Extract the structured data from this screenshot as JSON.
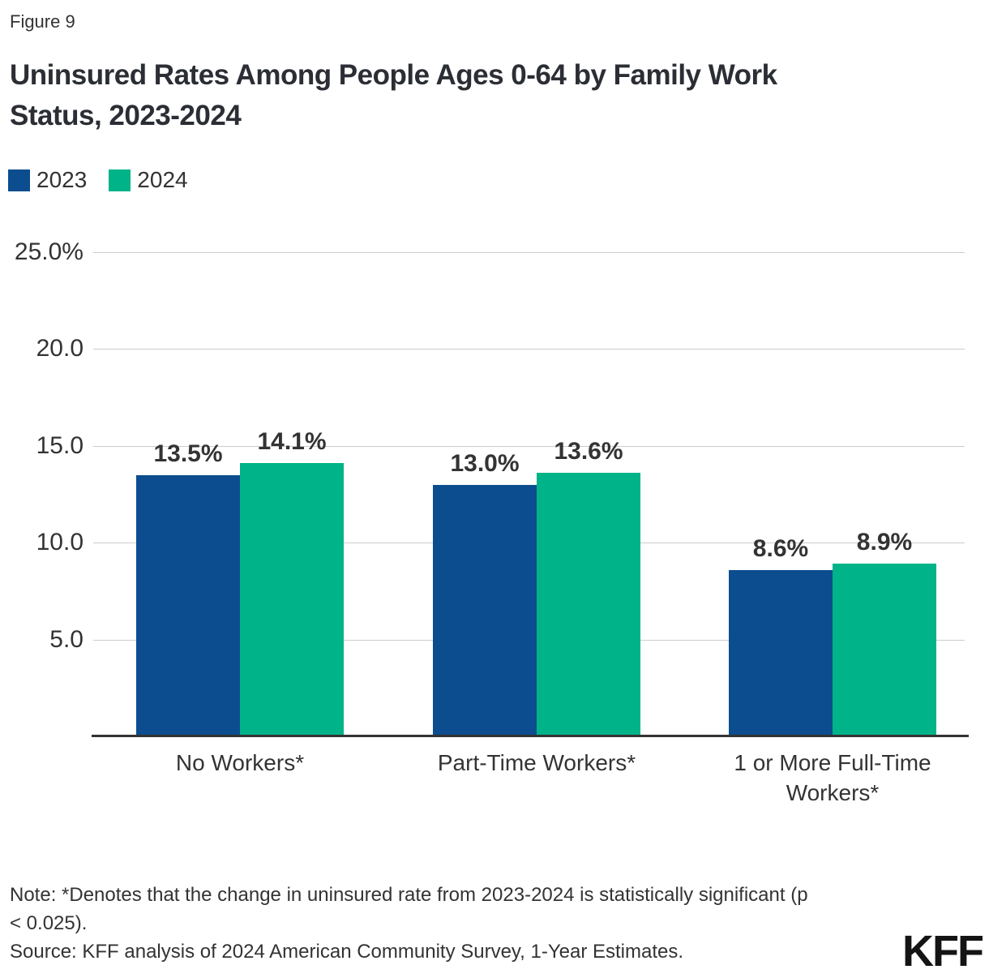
{
  "figure_label": "Figure 9",
  "title": "Uninsured Rates Among People Ages 0-64 by Family Work\nStatus, 2023-2024",
  "legend": {
    "items": [
      {
        "label": "2023",
        "color": "#0B4D8E"
      },
      {
        "label": "2024",
        "color": "#00B388"
      }
    ]
  },
  "chart_data": {
    "type": "bar",
    "title": "Uninsured Rates Among People Ages 0-64 by Family Work Status, 2023-2024",
    "categories": [
      "No Workers*",
      "Part-Time Workers*",
      "1 or More Full-Time Workers*"
    ],
    "series": [
      {
        "name": "2023",
        "color": "#0B4D8E",
        "values": [
          13.5,
          13.0,
          8.6
        ],
        "labels": [
          "13.5%",
          "13.0%",
          "8.6%"
        ]
      },
      {
        "name": "2024",
        "color": "#00B388",
        "values": [
          14.1,
          13.6,
          8.9
        ],
        "labels": [
          "14.1%",
          "13.6%",
          "8.9%"
        ]
      }
    ],
    "y_axis": {
      "min": 0,
      "max": 25,
      "ticks": [
        {
          "value": 25,
          "label": "25.0%"
        },
        {
          "value": 20,
          "label": "20.0"
        },
        {
          "value": 15,
          "label": "15.0"
        },
        {
          "value": 10,
          "label": "10.0"
        },
        {
          "value": 5,
          "label": "5.0"
        }
      ]
    },
    "grid": true,
    "legend_position": "top-left",
    "xlabel": "",
    "ylabel": ""
  },
  "note": "Note: *Denotes that the change in uninsured rate from 2023-2024 is statistically significant (p\n< 0.025).",
  "source": "Source: KFF analysis of 2024 American Community Survey, 1-Year Estimates.",
  "branding": {
    "logo_text": "KFF"
  }
}
